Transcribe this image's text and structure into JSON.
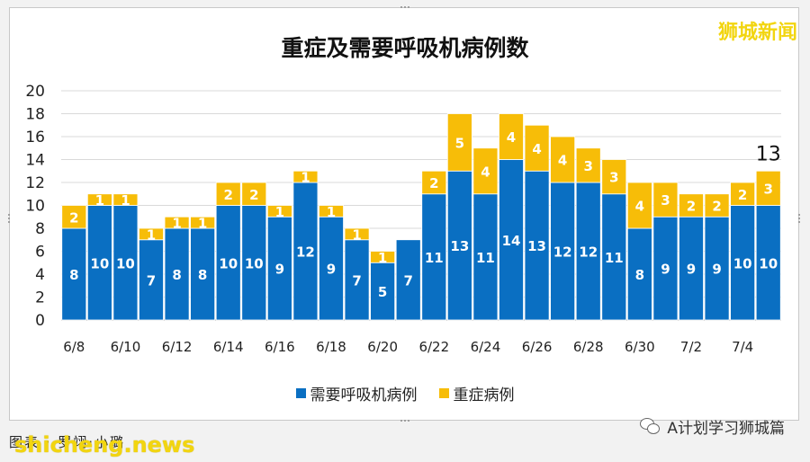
{
  "header": {
    "logo_text": "狮城新闻"
  },
  "footer": {
    "credit": "图表 · 罗翊·小璐",
    "watermark_left": "shicheng.news",
    "watermark_right": "A计划学习狮城篇"
  },
  "colors": {
    "series_ventilator": "#0a6fc2",
    "series_severe": "#f7bd08",
    "logo": "#f2d50f"
  },
  "chart_data": {
    "type": "bar",
    "stacked": true,
    "title": "重症及需要呼吸机病例数",
    "categories": [
      "6/8",
      "6/9",
      "6/10",
      "6/11",
      "6/12",
      "6/13",
      "6/14",
      "6/15",
      "6/16",
      "6/17",
      "6/18",
      "6/19",
      "6/20",
      "6/21",
      "6/22",
      "6/23",
      "6/24",
      "6/25",
      "6/26",
      "6/27",
      "6/28",
      "6/29",
      "6/30",
      "7/1",
      "7/2",
      "7/3",
      "7/4",
      "7/5"
    ],
    "x_tick_labels": [
      "6/8",
      "6/10",
      "6/12",
      "6/14",
      "6/16",
      "6/18",
      "6/20",
      "6/22",
      "6/24",
      "6/26",
      "6/28",
      "6/30",
      "7/2",
      "7/4"
    ],
    "series": [
      {
        "name": "需要呼吸机病例",
        "values": [
          8,
          10,
          10,
          7,
          8,
          8,
          10,
          10,
          9,
          12,
          9,
          7,
          5,
          7,
          11,
          13,
          11,
          14,
          13,
          12,
          12,
          11,
          8,
          9,
          9,
          9,
          10,
          10
        ]
      },
      {
        "name": "重症病例",
        "values": [
          2,
          1,
          1,
          1,
          1,
          1,
          2,
          2,
          1,
          1,
          1,
          1,
          1,
          0,
          2,
          5,
          4,
          4,
          4,
          4,
          3,
          3,
          4,
          3,
          2,
          2,
          2,
          3
        ]
      }
    ],
    "annotation": "13",
    "ylim": [
      0,
      20
    ],
    "yticks": [
      0,
      2,
      4,
      6,
      8,
      10,
      12,
      14,
      16,
      18,
      20
    ],
    "grid": true,
    "legend_position": "bottom"
  }
}
